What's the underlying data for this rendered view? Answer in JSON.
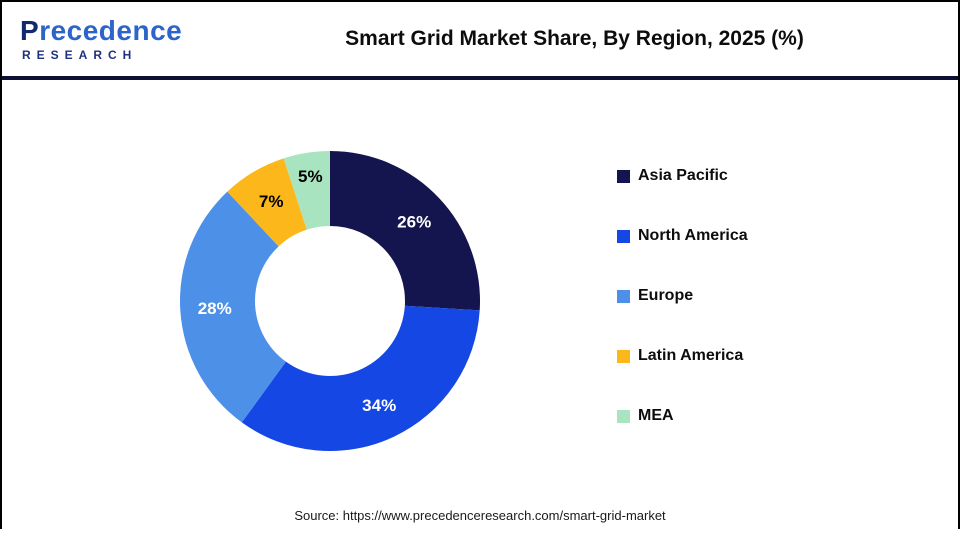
{
  "header": {
    "logo": {
      "line1": "Precedence",
      "line2": "RESEARCH"
    },
    "title": "Smart Grid Market Share, By Region, 2025 (%)"
  },
  "chart_data": {
    "type": "pie",
    "subtype": "donut",
    "title": "Smart Grid Market Share, By Region, 2025 (%)",
    "start_angle_deg": 0,
    "direction": "clockwise",
    "inner_radius_ratio": 0.5,
    "legend_position": "right",
    "unit": "%",
    "categories": [
      "Asia Pacific",
      "North America",
      "Europe",
      "Latin America",
      "MEA"
    ],
    "values": [
      26,
      34,
      28,
      7,
      5
    ],
    "slice_labels": [
      "26%",
      "34%",
      "28%",
      "7%",
      "5%"
    ],
    "colors": [
      "#14144e",
      "#1547e5",
      "#4d90e8",
      "#fcb81a",
      "#a9e4c0"
    ],
    "slice_label_colors": [
      "#ffffff",
      "#ffffff",
      "#ffffff",
      "#000000",
      "#000000"
    ]
  },
  "source_text": "Source: https://www.precedenceresearch.com/smart-grid-market"
}
